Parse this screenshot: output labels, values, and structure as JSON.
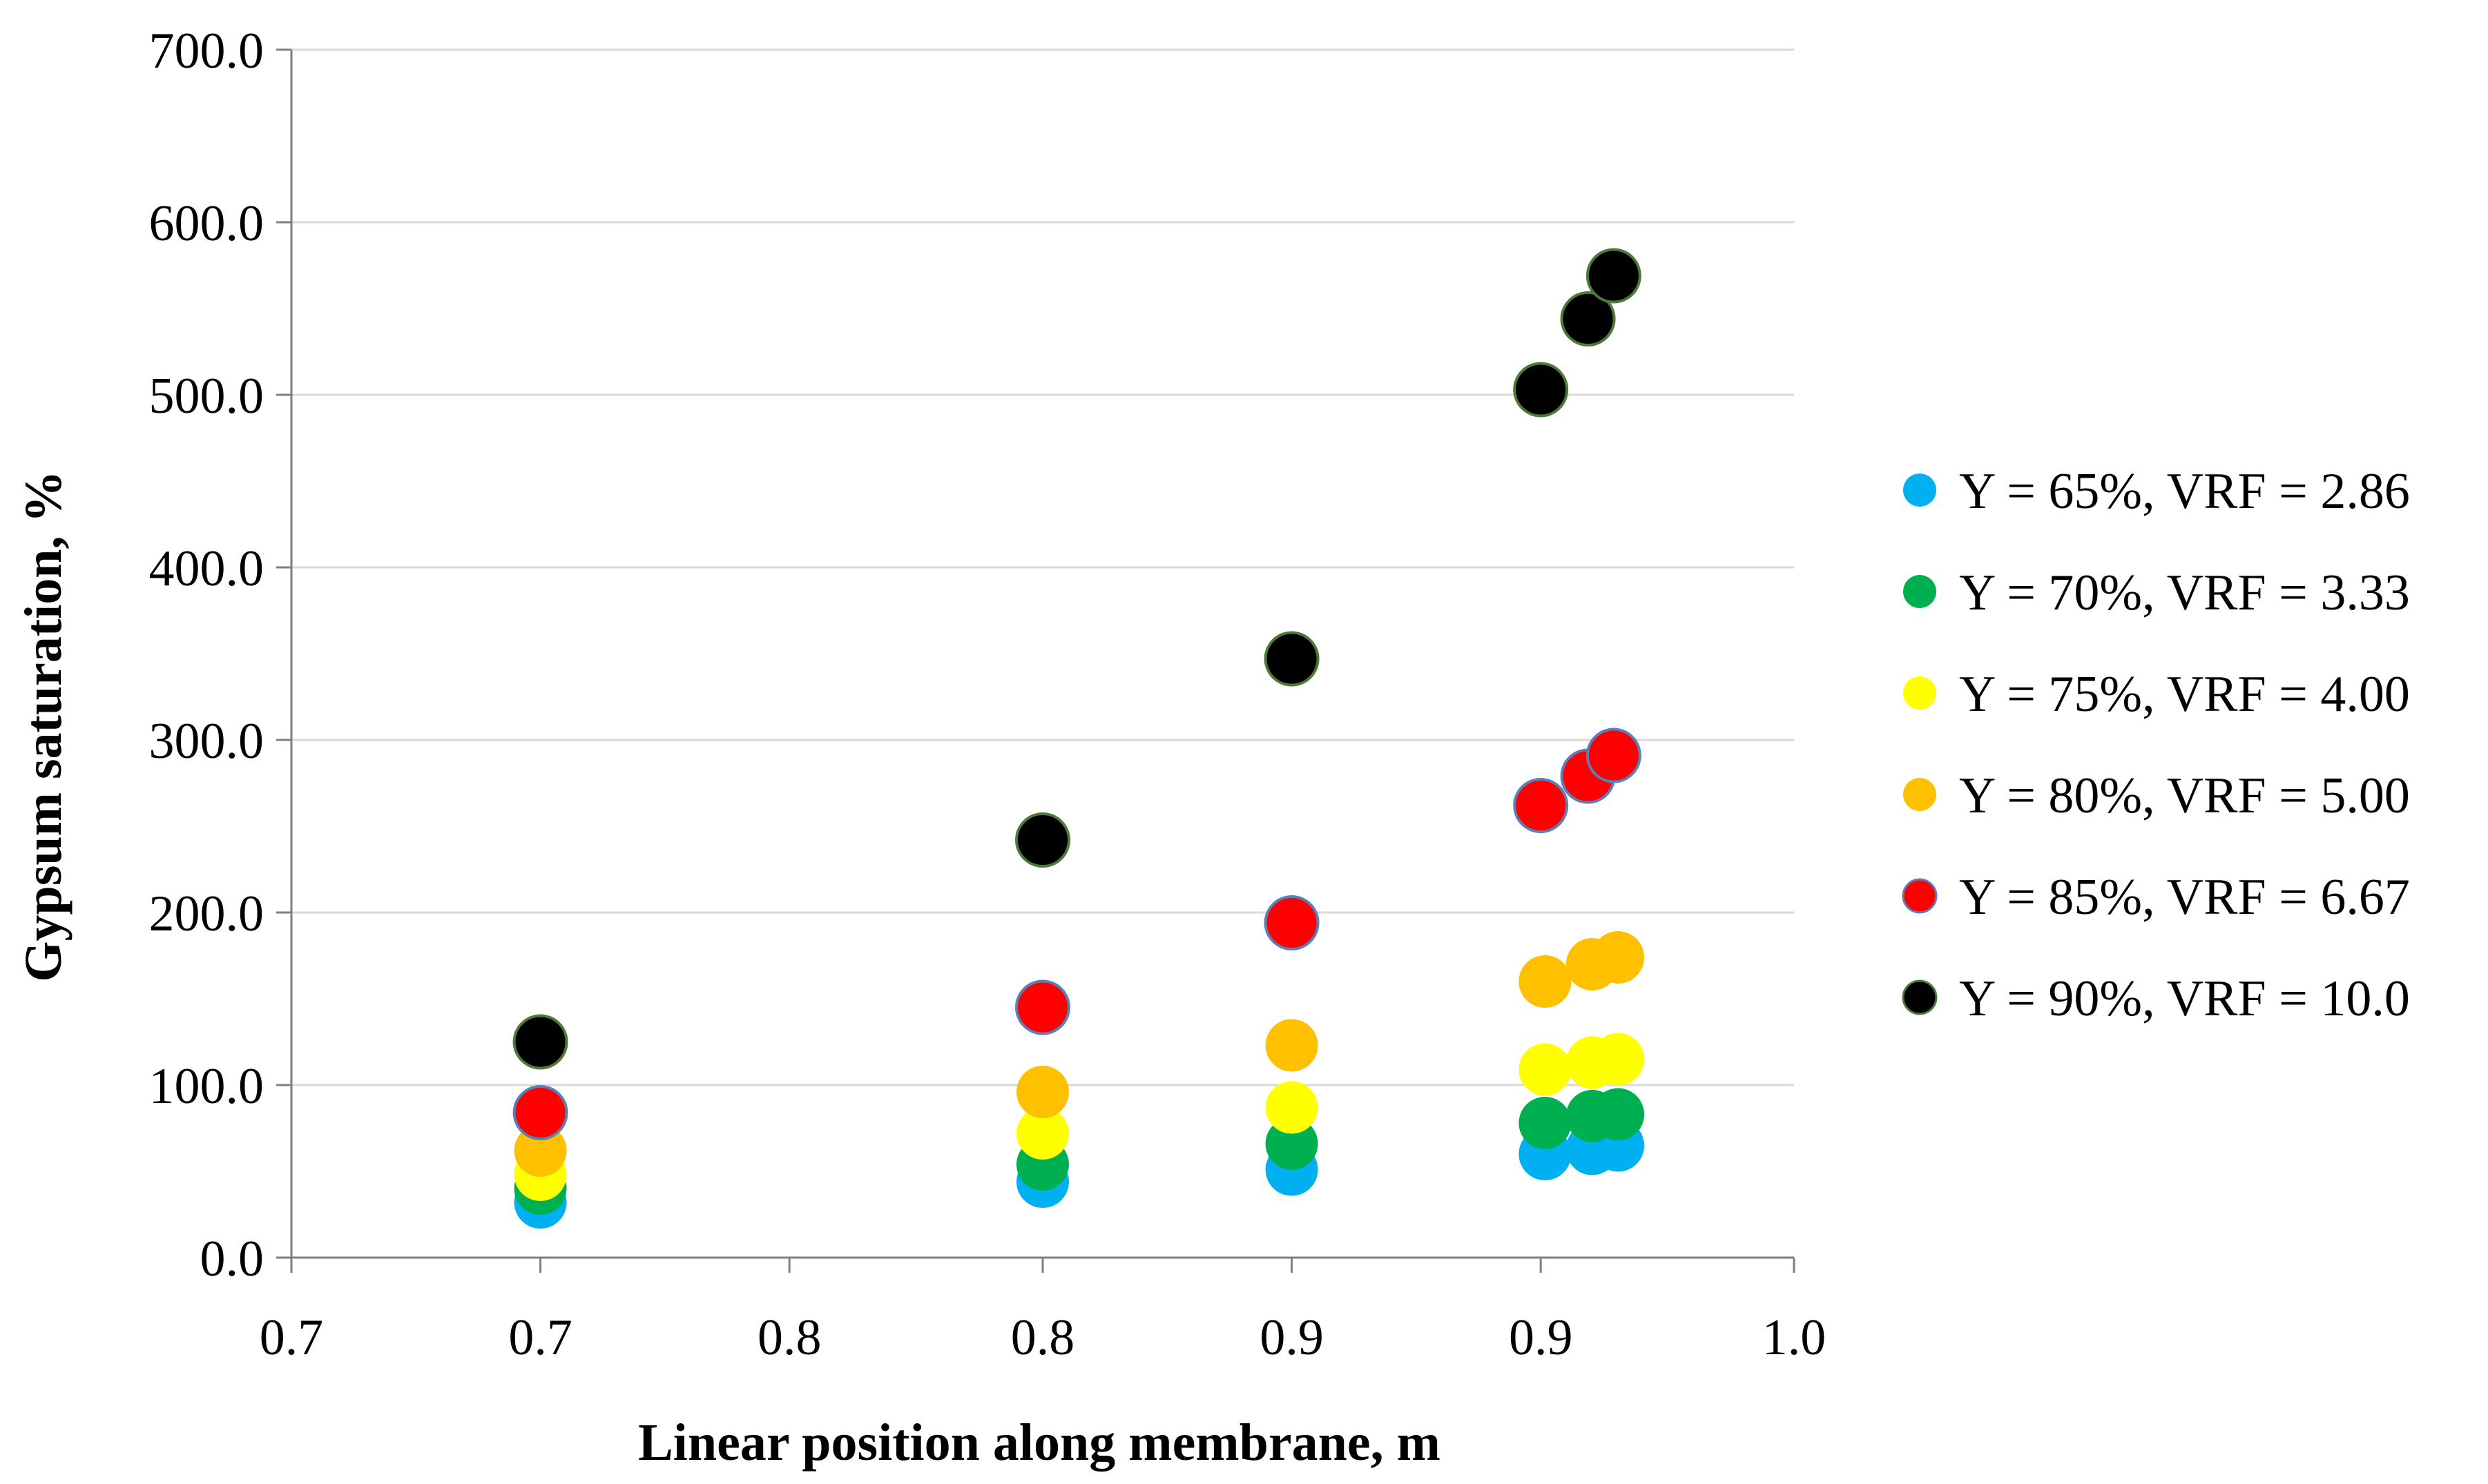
{
  "chart_data": {
    "type": "scatter",
    "title": "",
    "xlabel": "Linear position along membrane, m",
    "ylabel": "Gypsum saturation, %",
    "xlim": [
      0.65,
      1.0
    ],
    "ylim": [
      0,
      700
    ],
    "xticks": [
      0.65,
      0.708,
      0.766,
      0.825,
      0.883,
      0.941,
      1.0
    ],
    "xtick_labels": [
      "0.7",
      "0.7",
      "0.8",
      "0.8",
      "0.9",
      "0.9",
      "1.0"
    ],
    "yticks": [
      0,
      100,
      200,
      300,
      400,
      500,
      600,
      700
    ],
    "ytick_labels": [
      "0.0",
      "100.0",
      "200.0",
      "300.0",
      "400.0",
      "500.0",
      "600.0",
      "700.0"
    ],
    "grid": "horizontal",
    "legend_position": "right",
    "series": [
      {
        "name": "Y = 65%, VRF = 2.86",
        "color": "#00b0f0",
        "x": [
          0.708,
          0.825,
          0.883,
          0.942,
          0.953,
          0.959
        ],
        "y": [
          32,
          44,
          51,
          60,
          63,
          65
        ]
      },
      {
        "name": "Y = 70%, VRF = 3.33",
        "color": "#00b050",
        "x": [
          0.708,
          0.825,
          0.883,
          0.942,
          0.953,
          0.959
        ],
        "y": [
          40,
          54,
          66,
          78,
          82,
          83
        ]
      },
      {
        "name": "Y = 75%, VRF = 4.00",
        "color": "#ffff00",
        "x": [
          0.708,
          0.825,
          0.883,
          0.942,
          0.953,
          0.959
        ],
        "y": [
          48,
          72,
          87,
          109,
          113,
          115
        ]
      },
      {
        "name": "Y = 80%, VRF = 5.00",
        "color": "#ffc000",
        "x": [
          0.708,
          0.825,
          0.883,
          0.942,
          0.953,
          0.959
        ],
        "y": [
          62,
          96,
          123,
          160,
          170,
          174
        ]
      },
      {
        "name": "Y = 85%, VRF = 6.67",
        "color": "#ff0000",
        "x": [
          0.708,
          0.825,
          0.883,
          0.941,
          0.952,
          0.958
        ],
        "y": [
          84,
          145,
          194,
          262,
          279,
          291
        ]
      },
      {
        "name": "Y = 90%, VRF = 10.0",
        "color": "#000000",
        "x": [
          0.708,
          0.825,
          0.883,
          0.941,
          0.952,
          0.958
        ],
        "y": [
          125,
          242,
          347,
          503,
          544,
          569
        ]
      }
    ]
  }
}
